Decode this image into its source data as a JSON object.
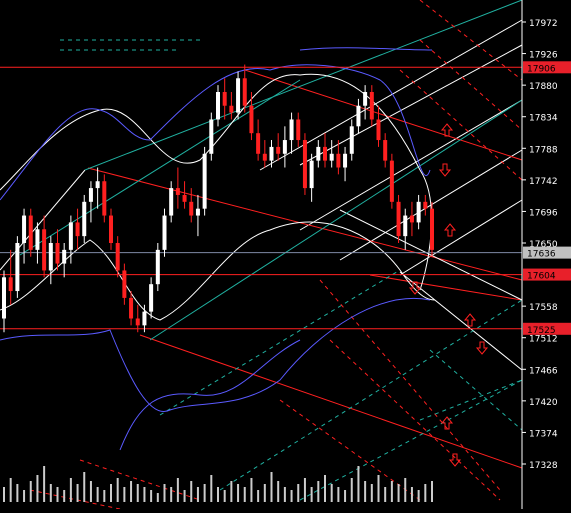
{
  "chart_data": {
    "type": "candlestick",
    "y_axis": {
      "position": "right",
      "ticks": [
        17972,
        17926,
        17880,
        17834,
        17788,
        17742,
        17696,
        17650,
        17558,
        17512,
        17466,
        17420,
        17374,
        17328
      ],
      "ylim": [
        17280,
        18000
      ]
    },
    "price_labels": [
      {
        "value": 17906,
        "text": "17906",
        "bg": "#e8202a",
        "fg": "#000000"
      },
      {
        "value": 17636,
        "text": "17636",
        "bg": "#c0c0c0",
        "fg": "#000000"
      },
      {
        "value": 17604,
        "text": "17604",
        "bg": "#e8202a",
        "fg": "#000000"
      },
      {
        "value": 17525,
        "text": "17525",
        "bg": "#e8202a",
        "fg": "#000000"
      }
    ],
    "horizontal_lines": [
      {
        "value": 17906,
        "color": "#ff2020"
      },
      {
        "value": 17636,
        "color": "#7f8aa6"
      },
      {
        "value": 17604,
        "color": "#ff2020"
      },
      {
        "value": 17525,
        "color": "#ff2020"
      }
    ],
    "candles": [
      [
        17540,
        17610,
        17520,
        17600
      ],
      [
        17600,
        17640,
        17560,
        17580
      ],
      [
        17580,
        17660,
        17570,
        17650
      ],
      [
        17650,
        17700,
        17620,
        17690
      ],
      [
        17690,
        17700,
        17630,
        17640
      ],
      [
        17640,
        17680,
        17620,
        17670
      ],
      [
        17670,
        17690,
        17600,
        17610
      ],
      [
        17610,
        17660,
        17590,
        17650
      ],
      [
        17650,
        17670,
        17610,
        17620
      ],
      [
        17620,
        17650,
        17600,
        17640
      ],
      [
        17640,
        17690,
        17620,
        17680
      ],
      [
        17680,
        17700,
        17640,
        17660
      ],
      [
        17660,
        17720,
        17650,
        17710
      ],
      [
        17710,
        17740,
        17680,
        17730
      ],
      [
        17730,
        17760,
        17700,
        17740
      ],
      [
        17740,
        17750,
        17680,
        17690
      ],
      [
        17690,
        17700,
        17640,
        17650
      ],
      [
        17650,
        17660,
        17600,
        17610
      ],
      [
        17610,
        17620,
        17560,
        17570
      ],
      [
        17570,
        17580,
        17530,
        17540
      ],
      [
        17540,
        17560,
        17520,
        17530
      ],
      [
        17530,
        17560,
        17520,
        17550
      ],
      [
        17550,
        17600,
        17540,
        17590
      ],
      [
        17590,
        17650,
        17580,
        17640
      ],
      [
        17640,
        17700,
        17630,
        17690
      ],
      [
        17690,
        17740,
        17680,
        17730
      ],
      [
        17730,
        17760,
        17700,
        17720
      ],
      [
        17720,
        17740,
        17700,
        17710
      ],
      [
        17710,
        17730,
        17680,
        17690
      ],
      [
        17690,
        17720,
        17660,
        17700
      ],
      [
        17700,
        17790,
        17690,
        17780
      ],
      [
        17780,
        17840,
        17770,
        17830
      ],
      [
        17830,
        17880,
        17820,
        17870
      ],
      [
        17870,
        17890,
        17830,
        17850
      ],
      [
        17850,
        17870,
        17830,
        17840
      ],
      [
        17840,
        17900,
        17830,
        17890
      ],
      [
        17890,
        17910,
        17840,
        17850
      ],
      [
        17850,
        17870,
        17800,
        17810
      ],
      [
        17810,
        17830,
        17770,
        17780
      ],
      [
        17780,
        17800,
        17760,
        17770
      ],
      [
        17770,
        17800,
        17760,
        17790
      ],
      [
        17790,
        17810,
        17770,
        17780
      ],
      [
        17780,
        17820,
        17760,
        17800
      ],
      [
        17800,
        17840,
        17780,
        17830
      ],
      [
        17830,
        17840,
        17790,
        17800
      ],
      [
        17800,
        17810,
        17720,
        17730
      ],
      [
        17730,
        17780,
        17710,
        17770
      ],
      [
        17770,
        17800,
        17760,
        17790
      ],
      [
        17790,
        17810,
        17760,
        17770
      ],
      [
        17770,
        17800,
        17760,
        17780
      ],
      [
        17780,
        17800,
        17750,
        17760
      ],
      [
        17760,
        17790,
        17740,
        17780
      ],
      [
        17780,
        17830,
        17770,
        17820
      ],
      [
        17820,
        17860,
        17810,
        17850
      ],
      [
        17850,
        17880,
        17830,
        17870
      ],
      [
        17870,
        17880,
        17820,
        17830
      ],
      [
        17830,
        17850,
        17790,
        17800
      ],
      [
        17800,
        17810,
        17760,
        17770
      ],
      [
        17770,
        17780,
        17700,
        17710
      ],
      [
        17710,
        17720,
        17650,
        17660
      ],
      [
        17660,
        17700,
        17640,
        17690
      ],
      [
        17690,
        17710,
        17660,
        17680
      ],
      [
        17680,
        17720,
        17670,
        17710
      ],
      [
        17710,
        17720,
        17690,
        17700
      ],
      [
        17700,
        17710,
        17630,
        17640
      ]
    ],
    "volume": [
      5,
      8,
      6,
      4,
      7,
      9,
      12,
      6,
      5,
      4,
      8,
      6,
      10,
      7,
      5,
      4,
      6,
      8,
      5,
      7,
      6,
      5,
      4,
      3,
      6,
      5,
      8,
      4,
      7,
      5,
      6,
      9,
      5,
      4,
      7,
      6,
      5,
      8,
      4,
      6,
      10,
      7,
      5,
      4,
      6,
      8,
      5,
      7,
      9,
      6,
      5,
      4,
      8,
      12,
      7,
      6,
      9,
      5,
      7,
      6,
      8,
      5,
      4,
      6,
      7
    ]
  }
}
